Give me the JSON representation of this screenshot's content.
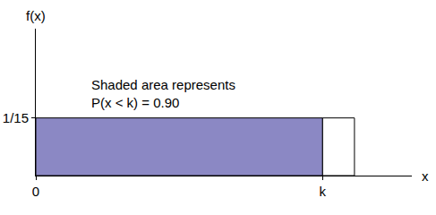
{
  "chart_data": {
    "type": "uniform",
    "x_label": "x",
    "y_label": "f(x)",
    "annotation": [
      "Shaded area represents",
      "P(x < k) = 0.90"
    ],
    "series": [
      {
        "x": [
          0,
          13.5
        ],
        "values": [
          0.0667,
          0.0667
        ],
        "color": "#8b88c4"
      },
      {
        "x": [
          13.5,
          15
        ],
        "values": [
          0.0667,
          0.0667
        ],
        "color": "#ffffff"
      }
    ],
    "xlim": [
      0,
      17.7
    ],
    "ylim": [
      0,
      0.17
    ],
    "xticks": [
      0,
      {
        "value": 13.5,
        "label": "k"
      }
    ],
    "yticks": [
      {
        "value": 0.0667,
        "label": "1/15"
      }
    ],
    "grid": false
  }
}
